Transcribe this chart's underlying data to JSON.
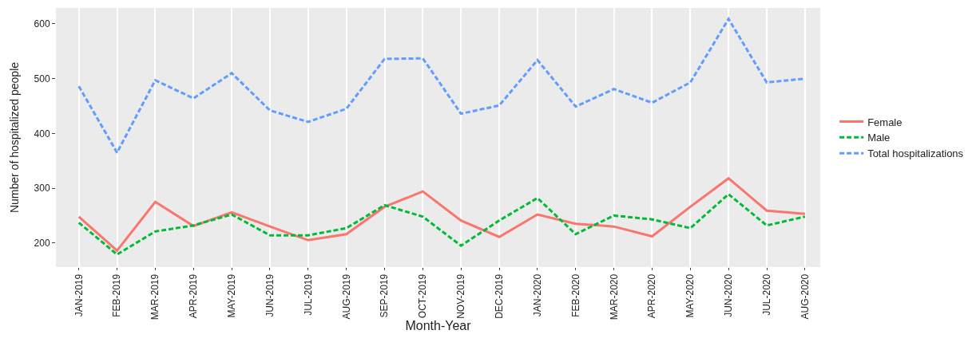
{
  "chart_data": {
    "type": "line",
    "xlabel": "Month-Year",
    "ylabel": "Number of hospitalized people",
    "categories": [
      "JAN-2019",
      "FEB-2019",
      "MAR-2019",
      "APR-2019",
      "MAY-2019",
      "JUN-2019",
      "JUL-2019",
      "AUG-2019",
      "SEP-2019",
      "OCT-2019",
      "NOV-2019",
      "DEC-2019",
      "JAN-2020",
      "FEB-2020",
      "MAR-2020",
      "APR-2020",
      "MAY-2020",
      "JUN-2020",
      "JUL-2020",
      "AUG-2020"
    ],
    "series": [
      {
        "name": "Female",
        "color": "#f8766d",
        "line_style": "solid",
        "values": [
          248,
          186,
          275,
          231,
          256,
          230,
          205,
          216,
          266,
          294,
          241,
          211,
          252,
          235,
          230,
          212,
          266,
          318,
          259,
          253
        ]
      },
      {
        "name": "Male",
        "color": "#00ba38",
        "line_style": "dashed",
        "values": [
          237,
          179,
          221,
          232,
          252,
          214,
          214,
          227,
          269,
          248,
          195,
          241,
          282,
          216,
          250,
          243,
          227,
          289,
          232,
          248
        ]
      },
      {
        "name": "Total hospitalizations",
        "color": "#619cff",
        "line_style": "dashed",
        "values": [
          486,
          365,
          497,
          464,
          510,
          442,
          421,
          445,
          536,
          537,
          436,
          451,
          534,
          449,
          481,
          456,
          493,
          609,
          493,
          500
        ]
      }
    ],
    "ylim": [
      156,
      629
    ],
    "yticks": [
      200,
      300,
      400,
      500,
      600
    ],
    "grid": "x",
    "legend": "right",
    "marker": "none"
  }
}
